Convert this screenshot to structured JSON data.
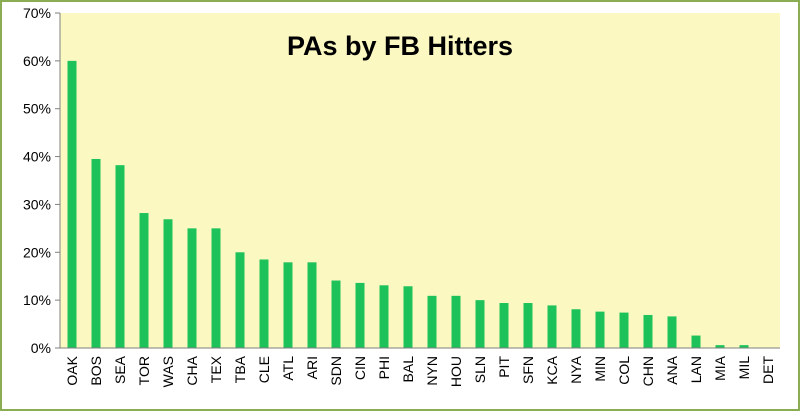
{
  "chart_data": {
    "type": "bar",
    "title": "PAs by FB Hitters",
    "xlabel": "",
    "ylabel": "",
    "categories": [
      "OAK",
      "BOS",
      "SEA",
      "TOR",
      "WAS",
      "CHA",
      "TEX",
      "TBA",
      "CLE",
      "ATL",
      "ARI",
      "SDN",
      "CIN",
      "PHI",
      "BAL",
      "NYN",
      "HOU",
      "SLN",
      "PIT",
      "SFN",
      "KCA",
      "NYA",
      "MIN",
      "COL",
      "CHN",
      "ANA",
      "LAN",
      "MIA",
      "MIL",
      "DET"
    ],
    "values": [
      60.0,
      39.5,
      38.2,
      28.2,
      26.9,
      25.0,
      25.0,
      20.0,
      18.5,
      17.9,
      17.9,
      14.1,
      13.6,
      13.1,
      12.9,
      10.9,
      10.9,
      10.0,
      9.4,
      9.4,
      8.9,
      8.1,
      7.6,
      7.4,
      6.9,
      6.6,
      2.6,
      0.6,
      0.6,
      0.0
    ],
    "yticks": [
      "0%",
      "10%",
      "20%",
      "30%",
      "40%",
      "50%",
      "60%",
      "70%"
    ],
    "ylim": [
      0,
      70
    ],
    "grid": false,
    "legend": "none",
    "colors": {
      "bar": "#1dc35a",
      "plot_background": "#fbf8c2",
      "page_background": "#ffffff",
      "outer_border": "#8aac52",
      "axis": "#7f7f7f"
    }
  }
}
